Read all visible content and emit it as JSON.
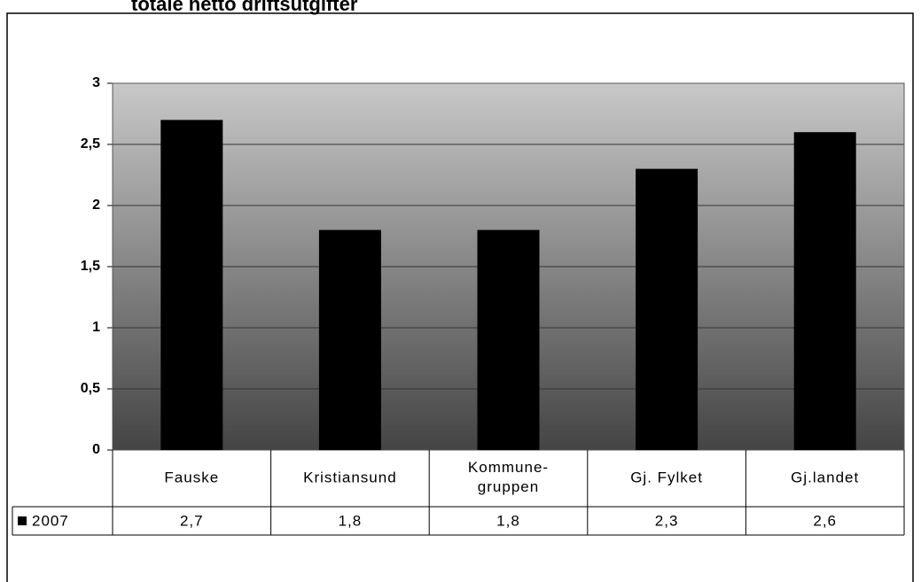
{
  "chart_data": {
    "type": "bar",
    "title": "totale netto driftsutgifter",
    "categories": [
      "Fauske",
      "Kristiansund",
      "Kommune-gruppen",
      "Gj. Fylket",
      "Gj.landet"
    ],
    "series": [
      {
        "name": "2007",
        "color": "#000000",
        "values": [
          2.7,
          1.8,
          1.8,
          2.3,
          2.6
        ],
        "value_labels": [
          "2,7",
          "1,8",
          "1,8",
          "2,3",
          "2,6"
        ]
      }
    ],
    "ylim": [
      0,
      3
    ],
    "yticks": [
      0,
      {
        "value": 0.5,
        "label": "0,5"
      },
      1,
      {
        "value": 1.5,
        "label": "1,5"
      },
      2,
      {
        "value": 2.5,
        "label": "2,5"
      },
      3
    ],
    "grid": true
  }
}
